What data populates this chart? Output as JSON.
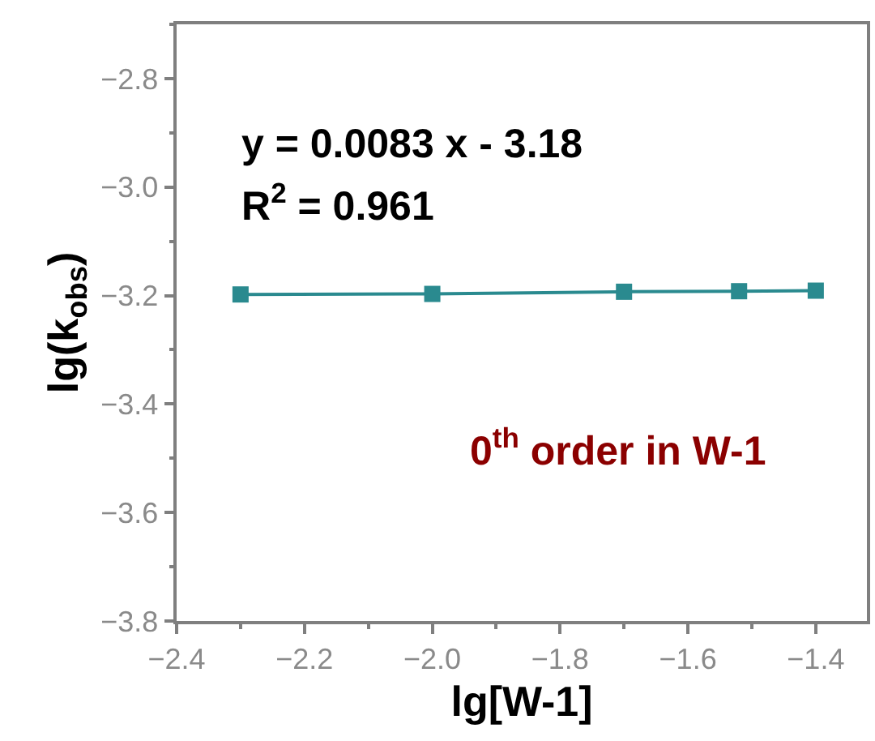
{
  "chart_data": {
    "type": "line",
    "xlabel": "lg[W-1]",
    "ylabel": "lg(k$_{obs}$)",
    "x": [
      -2.3,
      -2.0,
      -1.7,
      -1.52,
      -1.4
    ],
    "series": [
      {
        "color": "#2a8a8f",
        "values": [
          -3.198,
          -3.197,
          -3.193,
          -3.192,
          -3.191
        ]
      }
    ],
    "marker": "square",
    "line_style": "solid",
    "xlim": [
      -2.4,
      -1.32
    ],
    "xticks": [
      -2.4,
      -2.2,
      {
        "value": -2.0,
        "label": "−2.0"
      },
      -1.8,
      -1.6,
      -1.4
    ],
    "ylim": [
      -3.8,
      -2.7
    ],
    "yticks": [
      -3.8,
      -3.6,
      -3.4,
      -3.2,
      {
        "value": -3.0,
        "label": "−3.0"
      },
      -2.8
    ],
    "annotations": [
      "y = 0.0083 x - 3.18",
      "R$^{2}$ = 0.961",
      "0$^{th}$ order in W-1"
    ]
  }
}
